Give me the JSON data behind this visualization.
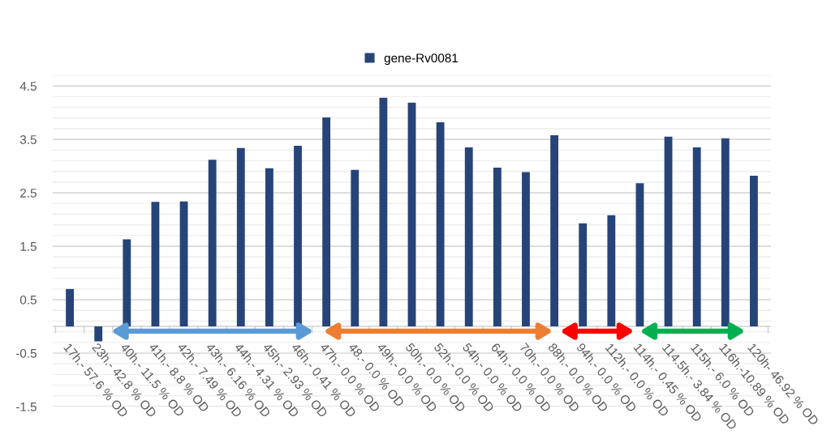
{
  "chart_data": {
    "type": "bar",
    "categories": [
      "17h.- 57.6 % OD",
      "23h.- 42.8 % OD",
      "40h.- 11.5 % OD",
      "41h.- 8.8 % OD",
      "42h.- 7.49 % OD",
      "43h.- 6.16 % OD",
      "44h.- 4.31 % OD",
      "45h.- 2.93 % OD",
      "46h.- 0.41 % OD",
      "47h.- 0.0 % OD",
      "48.- 0.0 % OD",
      "49h.- 0.0 % OD",
      "50h.- 0.0 % OD",
      "52h.- 0.0 % OD",
      "54h.- 0.0 % OD",
      "64h.- 0.0 % OD",
      "70h.- 0.0 % OD",
      "88h.- 0.0 % OD",
      "94h.- 0.0 % OD",
      "112h.- 0.0 % OD",
      "114h.- 0.45 % OD",
      "114.5h.- 3.84 % OD",
      "115h.- 6.0 % OD",
      "116h.-10.89 % OD",
      "120h- 46.92 % OD"
    ],
    "series": [
      {
        "name": "gene-Rv0081",
        "color": "#264478",
        "values": [
          0.7,
          -0.28,
          1.63,
          2.33,
          2.34,
          3.12,
          3.34,
          2.96,
          3.38,
          3.91,
          2.93,
          4.28,
          4.19,
          3.82,
          3.35,
          2.97,
          2.89,
          3.58,
          1.93,
          2.08,
          2.68,
          3.55,
          3.35,
          3.52,
          2.82
        ]
      }
    ],
    "ylim": [
      -1.5,
      4.7
    ],
    "yticks": [
      -1.5,
      {
        "value": -1.3,
        "label": null
      },
      {
        "value": -1.1,
        "label": null
      },
      {
        "value": -0.9,
        "label": null
      },
      {
        "value": -0.7,
        "label": null
      },
      -0.5,
      {
        "value": -0.3,
        "label": null
      },
      {
        "value": -0.1,
        "label": null
      },
      {
        "value": 0.1,
        "label": null
      },
      {
        "value": 0.3,
        "label": null
      },
      0.5,
      {
        "value": 0.7,
        "label": null
      },
      {
        "value": 0.9,
        "label": null
      },
      {
        "value": 1.1,
        "label": null
      },
      {
        "value": 1.3,
        "label": null
      },
      1.5,
      {
        "value": 1.7,
        "label": null
      },
      {
        "value": 1.9,
        "label": null
      },
      {
        "value": 2.1,
        "label": null
      },
      {
        "value": 2.3,
        "label": null
      },
      2.5,
      {
        "value": 2.7,
        "label": null
      },
      {
        "value": 2.9,
        "label": null
      },
      {
        "value": 3.1,
        "label": null
      },
      {
        "value": 3.3,
        "label": null
      },
      3.5,
      {
        "value": 3.7,
        "label": null
      },
      {
        "value": 3.9,
        "label": null
      },
      {
        "value": 4.1,
        "label": null
      },
      {
        "value": 4.3,
        "label": null
      },
      4.5,
      {
        "value": 4.7,
        "label": null
      }
    ],
    "grid": "y",
    "legend": "top"
  }
}
